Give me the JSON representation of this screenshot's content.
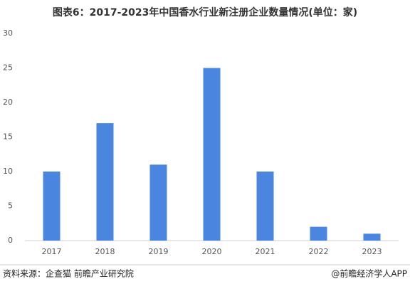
{
  "chart_data": {
    "type": "bar",
    "title": "图表6：2017-2023年中国香水行业新注册企业数量情况(单位：家)",
    "categories": [
      "2017",
      "2018",
      "2019",
      "2020",
      "2021",
      "2022",
      "2023"
    ],
    "values": [
      10,
      17,
      11,
      25,
      10,
      2,
      1
    ],
    "color": "#4a86e0",
    "ylim": [
      0,
      30
    ],
    "yticks": [
      0,
      5,
      10,
      15,
      20,
      25,
      30
    ],
    "grid": false,
    "source": "资料来源：企查猫 前瞻产业研究院",
    "credit": "@前瞻经济学人APP"
  }
}
